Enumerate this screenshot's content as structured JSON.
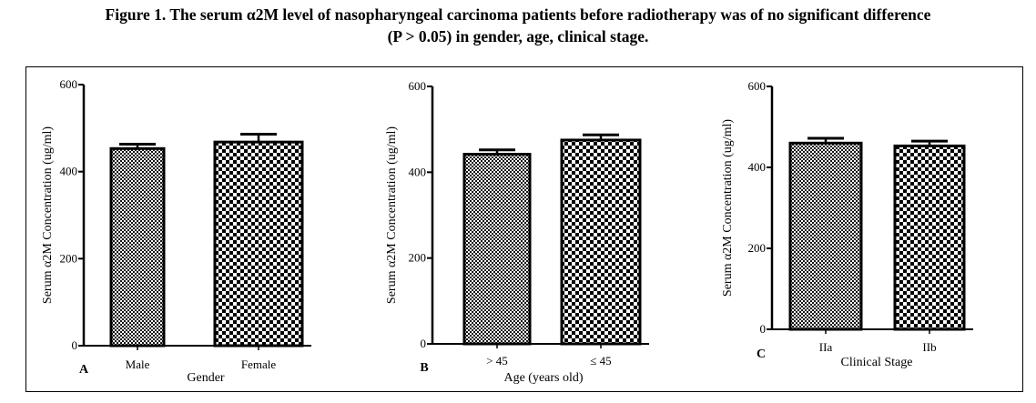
{
  "figure": {
    "title_line1": "Figure 1. The serum α2M level of nasopharyngeal carcinoma patients before radiotherapy was of no significant difference",
    "title_line2": "(P > 0.05) in gender, age, clinical stage."
  },
  "chart_data": [
    {
      "type": "bar",
      "panel": "A",
      "categories": [
        "Male",
        "Female"
      ],
      "values": [
        453,
        468
      ],
      "errors": [
        10,
        18
      ],
      "xlabel": "Gender",
      "ylabel": "Serum α2M Concentration (ug/ml)",
      "ylim": [
        0,
        600
      ],
      "yticks": [
        0,
        200,
        400,
        600
      ],
      "patterns": [
        "fine",
        "coarse"
      ]
    },
    {
      "type": "bar",
      "panel": "B",
      "categories": [
        "> 45",
        "≤ 45"
      ],
      "values": [
        442,
        475
      ],
      "errors": [
        10,
        12
      ],
      "xlabel": "Age (years old)",
      "ylabel": "Serum α2M Concentration (ug/ml)",
      "ylim": [
        0,
        600
      ],
      "yticks": [
        0,
        200,
        400,
        600
      ],
      "patterns": [
        "fine",
        "coarse"
      ]
    },
    {
      "type": "bar",
      "panel": "C",
      "categories": [
        "IIa",
        "IIb"
      ],
      "values": [
        460,
        453
      ],
      "errors": [
        12,
        12
      ],
      "xlabel": "Clinical Stage",
      "ylabel": "Serum α2M Concentration (ug/ml)",
      "ylim": [
        0,
        600
      ],
      "yticks": [
        0,
        200,
        400,
        600
      ],
      "patterns": [
        "fine",
        "coarse"
      ]
    }
  ]
}
